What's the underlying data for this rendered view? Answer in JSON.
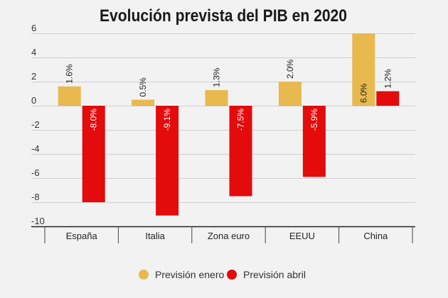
{
  "chart_data": {
    "type": "bar",
    "title": "Evolución prevista del PIB en 2020",
    "categories": [
      "España",
      "Italia",
      "Zona euro",
      "EEUU",
      "China"
    ],
    "series": [
      {
        "name": "Previsión enero",
        "color": "#e8b94f",
        "values": [
          1.6,
          0.5,
          1.3,
          2.0,
          6.0
        ],
        "labels": [
          "1.6%",
          "0.5%",
          "1.3%",
          "2.0%",
          "6.0%"
        ]
      },
      {
        "name": "Previsión abril",
        "color": "#e30b0b",
        "values": [
          -8.0,
          -9.1,
          -7.5,
          -5.9,
          1.2
        ],
        "labels": [
          "-8.0%",
          "-9.1%",
          "-7.5%",
          "-5.9%",
          "1.2%"
        ]
      }
    ],
    "yticks": [
      "6",
      "4",
      "2",
      "0",
      "-2",
      "-4",
      "-6",
      "-8",
      "-10"
    ],
    "ylim": [
      -10,
      6
    ],
    "xlabel": "",
    "ylabel": "",
    "grid": true,
    "legend_position": "bottom"
  }
}
